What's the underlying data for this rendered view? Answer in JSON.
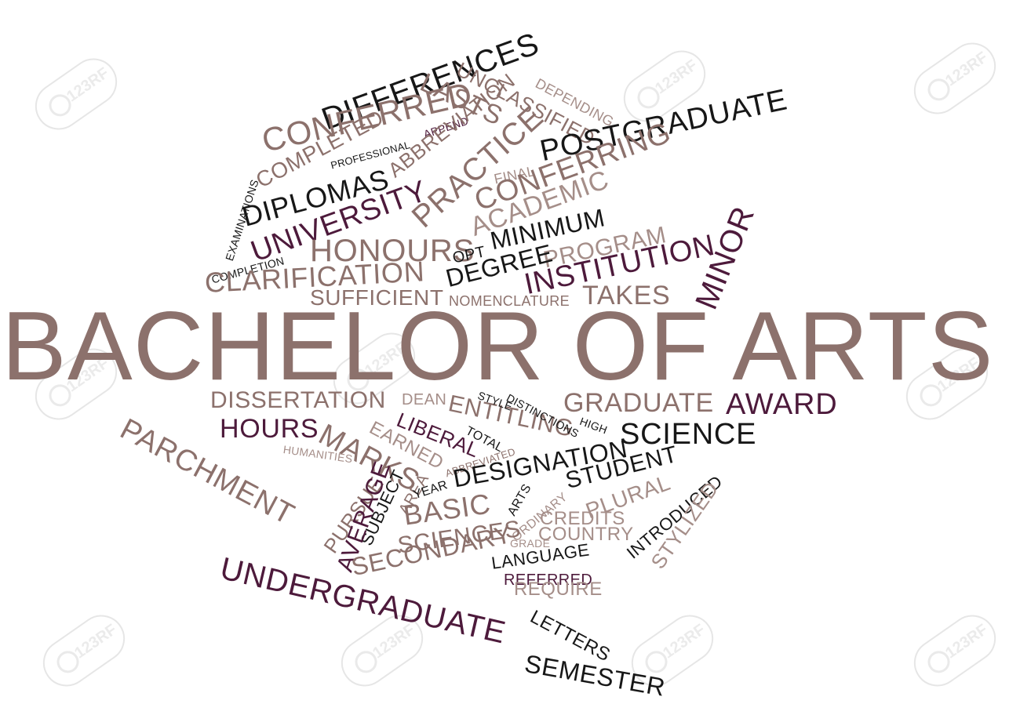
{
  "colors": {
    "taupe": "#8c716c",
    "light": "#a58e89",
    "plum": "#4d1a3b",
    "black": "#171717"
  },
  "watermark": "123RF",
  "words": {
    "bachelor_of_arts": "BACHELOR OF ARTS",
    "differences": "DIFFERENCES",
    "unclassified": "UNCLASSIFIED",
    "lasts": "LASTS",
    "depending": "DEPENDING",
    "conferred": "CONFERRED",
    "append": "APPEND",
    "abbreviation": "ABBREVIATION",
    "postgraduate": "POSTGRADUATE",
    "professional": "PROFESSIONAL",
    "completed": "COMPLETED",
    "practice": "PRACTICE",
    "final": "FINAL",
    "conferring": "CONFERRING",
    "examinations": "EXAMINATIONS",
    "diplomas": "DIPLOMAS",
    "university": "UNIVERSITY",
    "academic": "ACADEMIC",
    "minimum": "MINIMUM",
    "program": "PROGRAM",
    "minor": "MINOR",
    "completion": "COMPLETION",
    "honours": "HONOURS",
    "opt": "OPT",
    "degree": "DEGREE",
    "institution": "INSTITUTION",
    "clarification": "CLARIFICATION",
    "sufficient": "SUFFICIENT",
    "nomenclature": "NOMENCLATURE",
    "takes": "TAKES",
    "dissertation": "DISSERTATION",
    "dean": "DEAN",
    "entitling": "ENTITLING",
    "style": "STYLE",
    "distinctions": "DISTINCTIONS",
    "graduate": "GRADUATE",
    "award": "AWARD",
    "high": "HIGH",
    "parchment": "PARCHMENT",
    "hours": "HOURS",
    "marks": "MARKS",
    "liberal": "LIBERAL",
    "earned": "EARNED",
    "total": "TOTAL",
    "science": "SCIENCE",
    "humanities": "HUMANITIES",
    "abbreviated": "ABBREVIATED",
    "designation": "DESIGNATION",
    "student": "STUDENT",
    "pursue": "PURSUE",
    "subject": "SUBJECT",
    "area": "AREA",
    "year": "YEAR",
    "arts": "ARTS",
    "ordinary": "ORDINARY",
    "plural": "PLURAL",
    "introduced": "INTRODUCED",
    "average": "AVERAGE",
    "basic": "BASIC",
    "credits": "CREDITS",
    "country": "COUNTRY",
    "stylized": "STYLIZED",
    "sciences": "SCIENCES",
    "grade": "GRADE",
    "secondary": "SECONDARY",
    "language": "LANGUAGE",
    "undergraduate": "UNDERGRADUATE",
    "referred": "REFERRED",
    "require": "REQUIRE",
    "letters": "LETTERS",
    "semester": "SEMESTER"
  }
}
